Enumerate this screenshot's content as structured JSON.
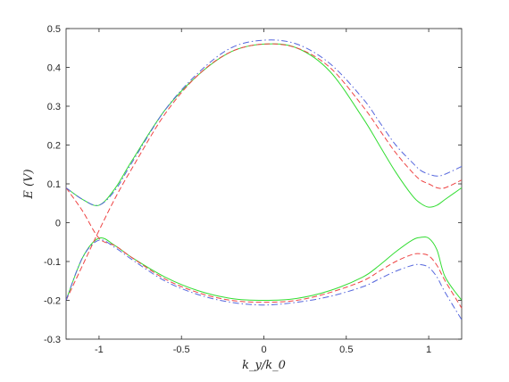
{
  "chart_data": {
    "type": "line",
    "title": "",
    "xlabel": "k_y/k_0",
    "ylabel": "E (V)",
    "xlim": [
      -1.2,
      1.2
    ],
    "ylim": [
      -0.3,
      0.5
    ],
    "xticks": [
      "-1",
      "-0.5",
      "0",
      "0.5",
      "1"
    ],
    "xtick_values": [
      -1,
      -0.5,
      0,
      0.5,
      1
    ],
    "yticks": [
      "-0.3",
      "-0.2",
      "-0.1",
      "0",
      "0.1",
      "0.2",
      "0.3",
      "0.4",
      "0.5"
    ],
    "ytick_values": [
      -0.3,
      -0.2,
      -0.1,
      0,
      0.1,
      0.2,
      0.3,
      0.4,
      0.5
    ],
    "grid": false,
    "legend": "none",
    "series": [
      {
        "color": "#33dd33",
        "style": "solid",
        "upper": {
          "x": [
            -1.2,
            -1.1,
            -1.0,
            -0.9,
            -0.8,
            -0.6,
            -0.4,
            -0.2,
            0.0,
            0.2,
            0.4,
            0.6,
            0.7,
            0.8,
            0.9,
            0.95,
            1.0,
            1.05,
            1.1,
            1.2
          ],
          "y": [
            0.09,
            0.06,
            0.045,
            0.09,
            0.16,
            0.29,
            0.38,
            0.44,
            0.46,
            0.45,
            0.39,
            0.27,
            0.2,
            0.13,
            0.07,
            0.05,
            0.04,
            0.045,
            0.06,
            0.09
          ]
        },
        "lower": {
          "x": [
            -1.2,
            -1.1,
            -1.0,
            -0.9,
            -0.8,
            -0.6,
            -0.4,
            -0.2,
            0.0,
            0.2,
            0.4,
            0.6,
            0.7,
            0.8,
            0.9,
            0.95,
            1.0,
            1.05,
            1.1,
            1.2
          ],
          "y": [
            -0.2,
            -0.09,
            -0.04,
            -0.06,
            -0.09,
            -0.14,
            -0.175,
            -0.195,
            -0.2,
            -0.195,
            -0.175,
            -0.14,
            -0.11,
            -0.075,
            -0.045,
            -0.038,
            -0.04,
            -0.07,
            -0.14,
            -0.2
          ]
        }
      },
      {
        "color": "#ee4444",
        "style": "dashed",
        "upper": {
          "x": [
            -1.2,
            -1.1,
            -1.0,
            -0.9,
            -0.8,
            -0.6,
            -0.4,
            -0.2,
            0.0,
            0.2,
            0.4,
            0.6,
            0.7,
            0.8,
            0.9,
            0.95,
            1.0,
            1.05,
            1.1,
            1.2
          ],
          "y": [
            -0.2,
            -0.11,
            -0.02,
            0.065,
            0.14,
            0.28,
            0.38,
            0.44,
            0.46,
            0.45,
            0.4,
            0.3,
            0.24,
            0.18,
            0.13,
            0.11,
            0.1,
            0.09,
            0.09,
            0.11
          ]
        },
        "lower": {
          "x": [
            -1.2,
            -1.1,
            -1.0,
            -0.9,
            -0.8,
            -0.6,
            -0.4,
            -0.2,
            0.0,
            0.2,
            0.4,
            0.6,
            0.7,
            0.8,
            0.9,
            0.95,
            1.0,
            1.05,
            1.1,
            1.2
          ],
          "y": [
            0.09,
            0.03,
            -0.04,
            -0.06,
            -0.09,
            -0.145,
            -0.18,
            -0.2,
            -0.205,
            -0.2,
            -0.18,
            -0.15,
            -0.125,
            -0.1,
            -0.082,
            -0.08,
            -0.085,
            -0.11,
            -0.15,
            -0.22
          ]
        }
      },
      {
        "color": "#5566dd",
        "style": "dashdot",
        "upper": {
          "x": [
            -1.2,
            -1.1,
            -1.0,
            -0.9,
            -0.8,
            -0.6,
            -0.4,
            -0.2,
            0.0,
            0.2,
            0.4,
            0.6,
            0.7,
            0.8,
            0.9,
            0.95,
            1.0,
            1.05,
            1.1,
            1.2
          ],
          "y": [
            0.09,
            0.06,
            0.045,
            0.085,
            0.155,
            0.29,
            0.385,
            0.45,
            0.47,
            0.46,
            0.41,
            0.32,
            0.26,
            0.2,
            0.155,
            0.135,
            0.125,
            0.12,
            0.125,
            0.145
          ]
        },
        "lower": {
          "x": [
            -1.2,
            -1.1,
            -1.0,
            -0.9,
            -0.8,
            -0.6,
            -0.4,
            -0.2,
            0.0,
            0.2,
            0.4,
            0.6,
            0.7,
            0.8,
            0.9,
            0.95,
            1.0,
            1.05,
            1.1,
            1.2
          ],
          "y": [
            -0.2,
            -0.09,
            -0.045,
            -0.065,
            -0.095,
            -0.15,
            -0.185,
            -0.205,
            -0.212,
            -0.205,
            -0.19,
            -0.165,
            -0.145,
            -0.125,
            -0.11,
            -0.108,
            -0.115,
            -0.14,
            -0.18,
            -0.25
          ]
        }
      }
    ]
  }
}
